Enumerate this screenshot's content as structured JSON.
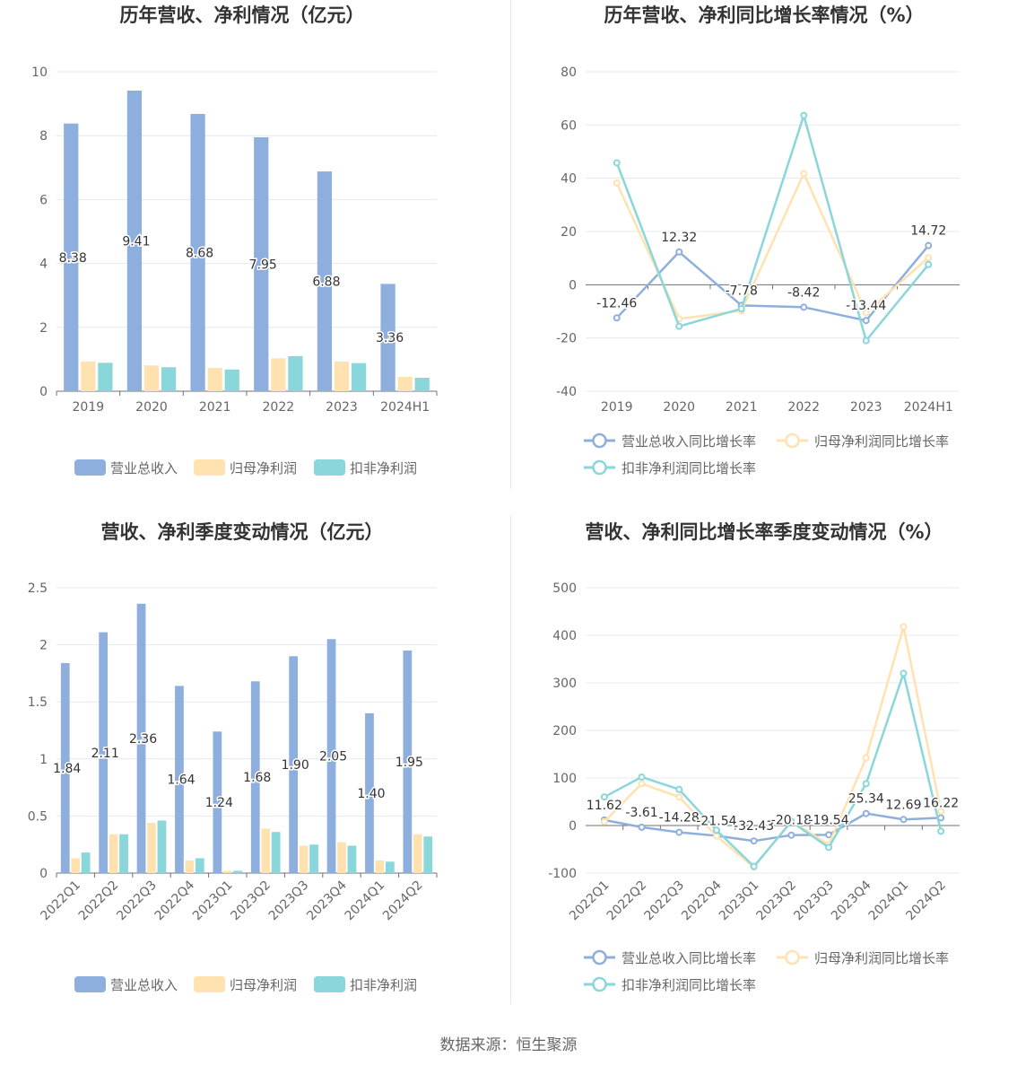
{
  "colors": {
    "revenue": "#8eafdd",
    "net_profit": "#ffe2b0",
    "deducted_profit": "#89d6db",
    "grid": "#e4e8f0",
    "axis": "#6e7079"
  },
  "source_text": "数据来源：恒生聚源",
  "legends": {
    "bars": [
      "营业总收入",
      "归母净利润",
      "扣非净利润"
    ],
    "lines": [
      "营业总收入同比增长率",
      "归母净利润同比增长率",
      "扣非净利润同比增长率"
    ]
  },
  "chart_data": [
    {
      "id": "annual-amount",
      "type": "bar",
      "title": "历年营收、净利情况（亿元）",
      "categories": [
        "2019",
        "2020",
        "2021",
        "2022",
        "2023",
        "2024H1"
      ],
      "ylim": [
        0,
        10
      ],
      "yticks": [
        0,
        2,
        4,
        6,
        8,
        10
      ],
      "grid": true,
      "legend_position": "bottom",
      "label_series": 0,
      "label_decimals": 2,
      "series": [
        {
          "name": "营业总收入",
          "values": [
            8.38,
            9.41,
            8.68,
            7.95,
            6.88,
            3.36
          ]
        },
        {
          "name": "归母净利润",
          "values": [
            0.93,
            0.81,
            0.73,
            1.03,
            0.93,
            0.45
          ]
        },
        {
          "name": "扣非净利润",
          "values": [
            0.89,
            0.75,
            0.68,
            1.1,
            0.88,
            0.42
          ]
        }
      ]
    },
    {
      "id": "annual-growth",
      "type": "line",
      "title": "历年营收、净利同比增长率情况（%）",
      "categories": [
        "2019",
        "2020",
        "2021",
        "2022",
        "2023",
        "2024H1"
      ],
      "ylim": [
        -40,
        80
      ],
      "yticks": [
        -40,
        -20,
        0,
        20,
        40,
        60,
        80
      ],
      "grid": true,
      "legend_position": "bottom",
      "label_series": 0,
      "label_decimals": 2,
      "series": [
        {
          "name": "营业总收入同比增长率",
          "values": [
            -12.46,
            12.32,
            -7.78,
            -8.42,
            -13.44,
            14.72
          ]
        },
        {
          "name": "归母净利润同比增长率",
          "values": [
            38.2,
            -12.8,
            -9.8,
            41.8,
            -10.5,
            10.2
          ]
        },
        {
          "name": "扣非净利润同比增长率",
          "values": [
            45.8,
            -15.6,
            -9.0,
            63.6,
            -21.0,
            7.6
          ]
        }
      ]
    },
    {
      "id": "quarterly-amount",
      "type": "bar",
      "title": "营收、净利季度变动情况（亿元）",
      "categories": [
        "2022Q1",
        "2022Q2",
        "2022Q3",
        "2022Q4",
        "2023Q1",
        "2023Q2",
        "2023Q3",
        "2023Q4",
        "2024Q1",
        "2024Q2"
      ],
      "ylim": [
        0,
        2.5
      ],
      "yticks": [
        0,
        0.5,
        1,
        1.5,
        2,
        2.5
      ],
      "grid": true,
      "legend_position": "bottom",
      "label_series": 0,
      "label_decimals": 2,
      "series": [
        {
          "name": "营业总收入",
          "values": [
            1.84,
            2.11,
            2.36,
            1.64,
            1.24,
            1.68,
            1.9,
            2.05,
            1.4,
            1.95
          ]
        },
        {
          "name": "归母净利润",
          "values": [
            0.13,
            0.34,
            0.44,
            0.11,
            0.02,
            0.39,
            0.24,
            0.27,
            0.11,
            0.34
          ]
        },
        {
          "name": "扣非净利润",
          "values": [
            0.18,
            0.34,
            0.46,
            0.13,
            0.02,
            0.36,
            0.25,
            0.24,
            0.1,
            0.32
          ]
        }
      ]
    },
    {
      "id": "quarterly-growth",
      "type": "line",
      "title": "营收、净利同比增长率季度变动情况（%）",
      "categories": [
        "2022Q1",
        "2022Q2",
        "2022Q3",
        "2022Q4",
        "2023Q1",
        "2023Q2",
        "2023Q3",
        "2023Q4",
        "2024Q1",
        "2024Q2"
      ],
      "ylim": [
        -100,
        500
      ],
      "yticks": [
        -100,
        0,
        100,
        200,
        300,
        400,
        500
      ],
      "grid": true,
      "legend_position": "bottom",
      "label_series": 0,
      "label_decimals": 2,
      "rotate_x_labels": true,
      "series": [
        {
          "name": "营业总收入同比增长率",
          "values": [
            11.62,
            -3.61,
            -14.28,
            -21.54,
            -32.43,
            -20.18,
            -19.54,
            25.34,
            12.69,
            16.22
          ]
        },
        {
          "name": "归母净利润同比增长率",
          "values": [
            8,
            88,
            60,
            -22,
            -88,
            10,
            -40,
            142,
            418,
            30
          ]
        },
        {
          "name": "扣非净利润同比增长率",
          "values": [
            60,
            102,
            76,
            -10,
            -86,
            8,
            -46,
            88,
            320,
            -12
          ]
        }
      ]
    }
  ]
}
